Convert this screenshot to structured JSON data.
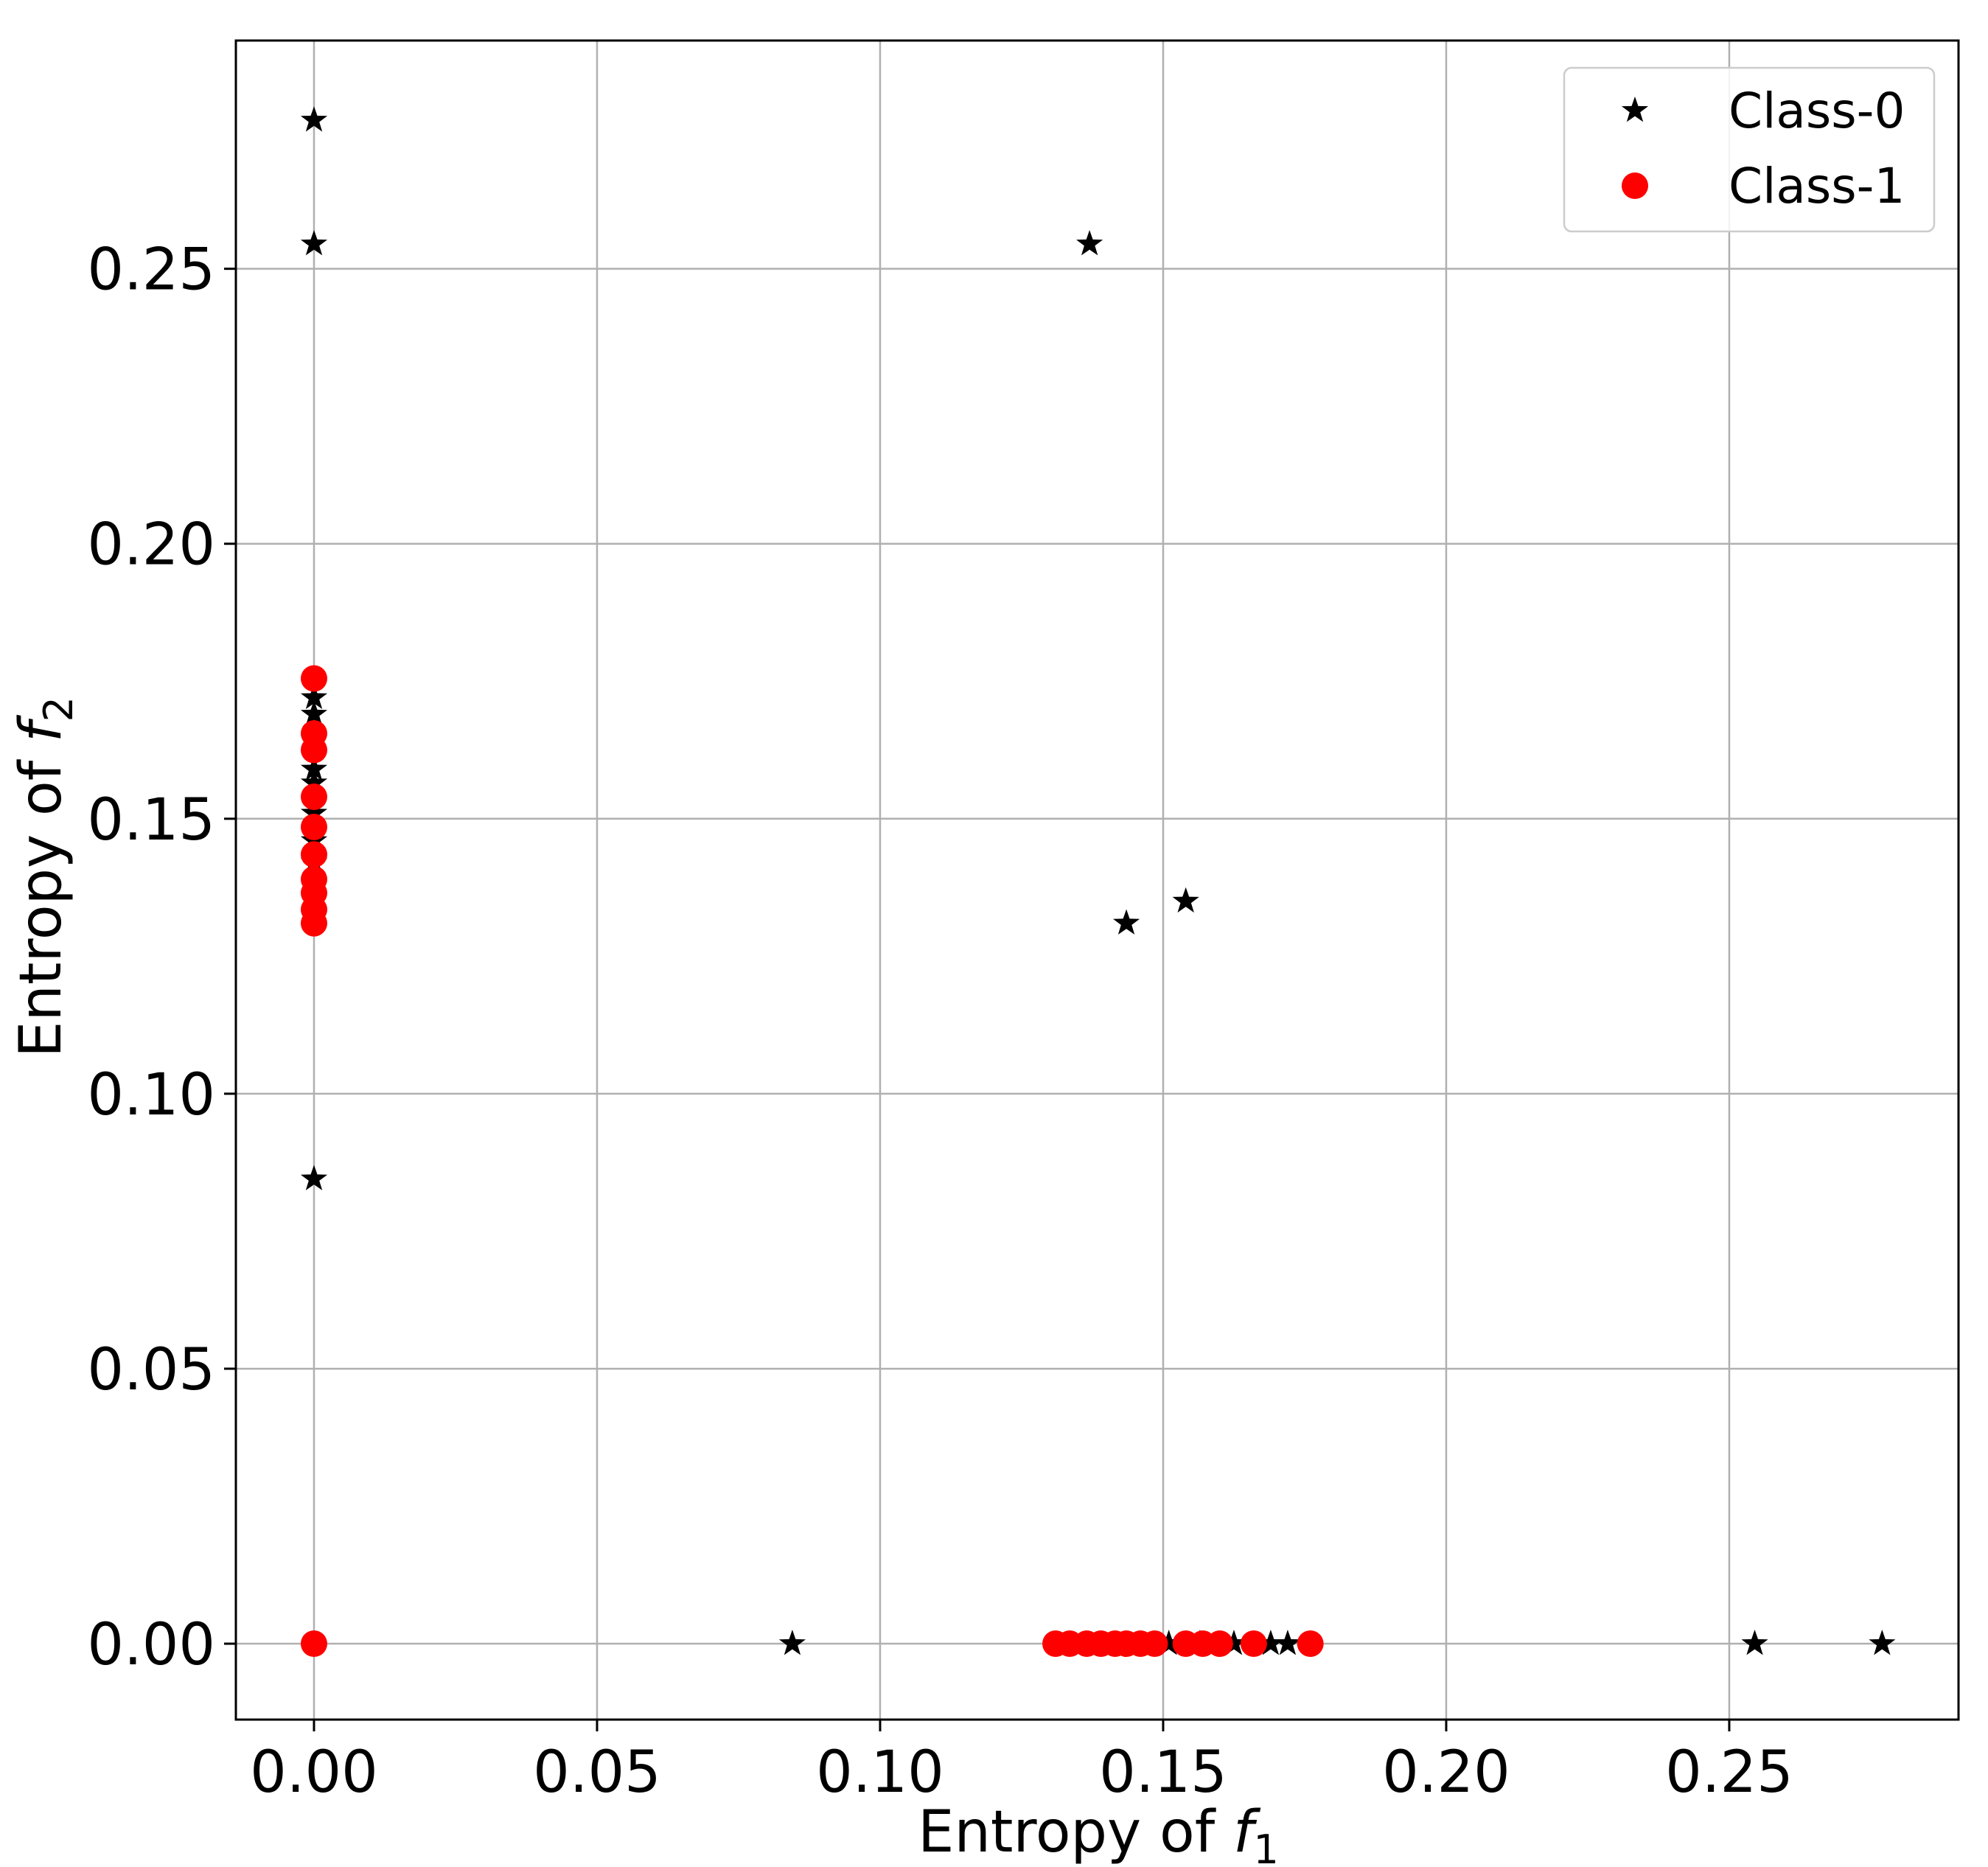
{
  "chart_data": {
    "type": "scatter",
    "title": "",
    "xlabel_prefix": "Entropy of ",
    "xlabel_var": "f",
    "xlabel_sub": "1",
    "ylabel_prefix": "Entropy of ",
    "ylabel_var": "f",
    "ylabel_sub": "2",
    "xlim": [
      -0.0138,
      0.2905
    ],
    "ylim": [
      -0.0138,
      0.2915
    ],
    "xticks": [
      0.0,
      0.05,
      0.1,
      0.15,
      0.2,
      0.25
    ],
    "xtick_labels": [
      "0.00",
      "0.05",
      "0.10",
      "0.15",
      "0.20",
      "0.25"
    ],
    "yticks": [
      0.0,
      0.05,
      0.1,
      0.15,
      0.2,
      0.25
    ],
    "ytick_labels": [
      "0.00",
      "0.05",
      "0.10",
      "0.15",
      "0.20",
      "0.25"
    ],
    "grid": true,
    "legend_position": "top-right",
    "series": [
      {
        "name": "Class-0",
        "marker": "star",
        "color": "#000000",
        "points": [
          [
            0.0,
            0.277
          ],
          [
            0.0,
            0.2545
          ],
          [
            0.0,
            0.172
          ],
          [
            0.0,
            0.169
          ],
          [
            0.0,
            0.159
          ],
          [
            0.0,
            0.1565
          ],
          [
            0.0,
            0.151
          ],
          [
            0.0,
            0.146
          ],
          [
            0.0,
            0.142
          ],
          [
            0.0,
            0.0845
          ],
          [
            0.137,
            0.2545
          ],
          [
            0.1435,
            0.131
          ],
          [
            0.154,
            0.135
          ],
          [
            0.0845,
            0.0
          ],
          [
            0.151,
            0.0
          ],
          [
            0.1565,
            0.0
          ],
          [
            0.1625,
            0.0
          ],
          [
            0.169,
            0.0
          ],
          [
            0.172,
            0.0
          ],
          [
            0.2545,
            0.0
          ],
          [
            0.277,
            0.0
          ]
        ]
      },
      {
        "name": "Class-1",
        "marker": "circle",
        "color": "#ff0000",
        "points": [
          [
            0.0,
            0.1755
          ],
          [
            0.0,
            0.1655
          ],
          [
            0.0,
            0.1625
          ],
          [
            0.0,
            0.154
          ],
          [
            0.0,
            0.1485
          ],
          [
            0.0,
            0.1435
          ],
          [
            0.0,
            0.139
          ],
          [
            0.0,
            0.1365
          ],
          [
            0.0,
            0.1335
          ],
          [
            0.0,
            0.131
          ],
          [
            0.0,
            0.0
          ],
          [
            0.131,
            0.0
          ],
          [
            0.1335,
            0.0
          ],
          [
            0.1365,
            0.0
          ],
          [
            0.139,
            0.0
          ],
          [
            0.1415,
            0.0
          ],
          [
            0.1435,
            0.0
          ],
          [
            0.146,
            0.0
          ],
          [
            0.1485,
            0.0
          ],
          [
            0.154,
            0.0
          ],
          [
            0.157,
            0.0
          ],
          [
            0.16,
            0.0
          ],
          [
            0.166,
            0.0
          ],
          [
            0.176,
            0.0
          ]
        ]
      }
    ]
  }
}
